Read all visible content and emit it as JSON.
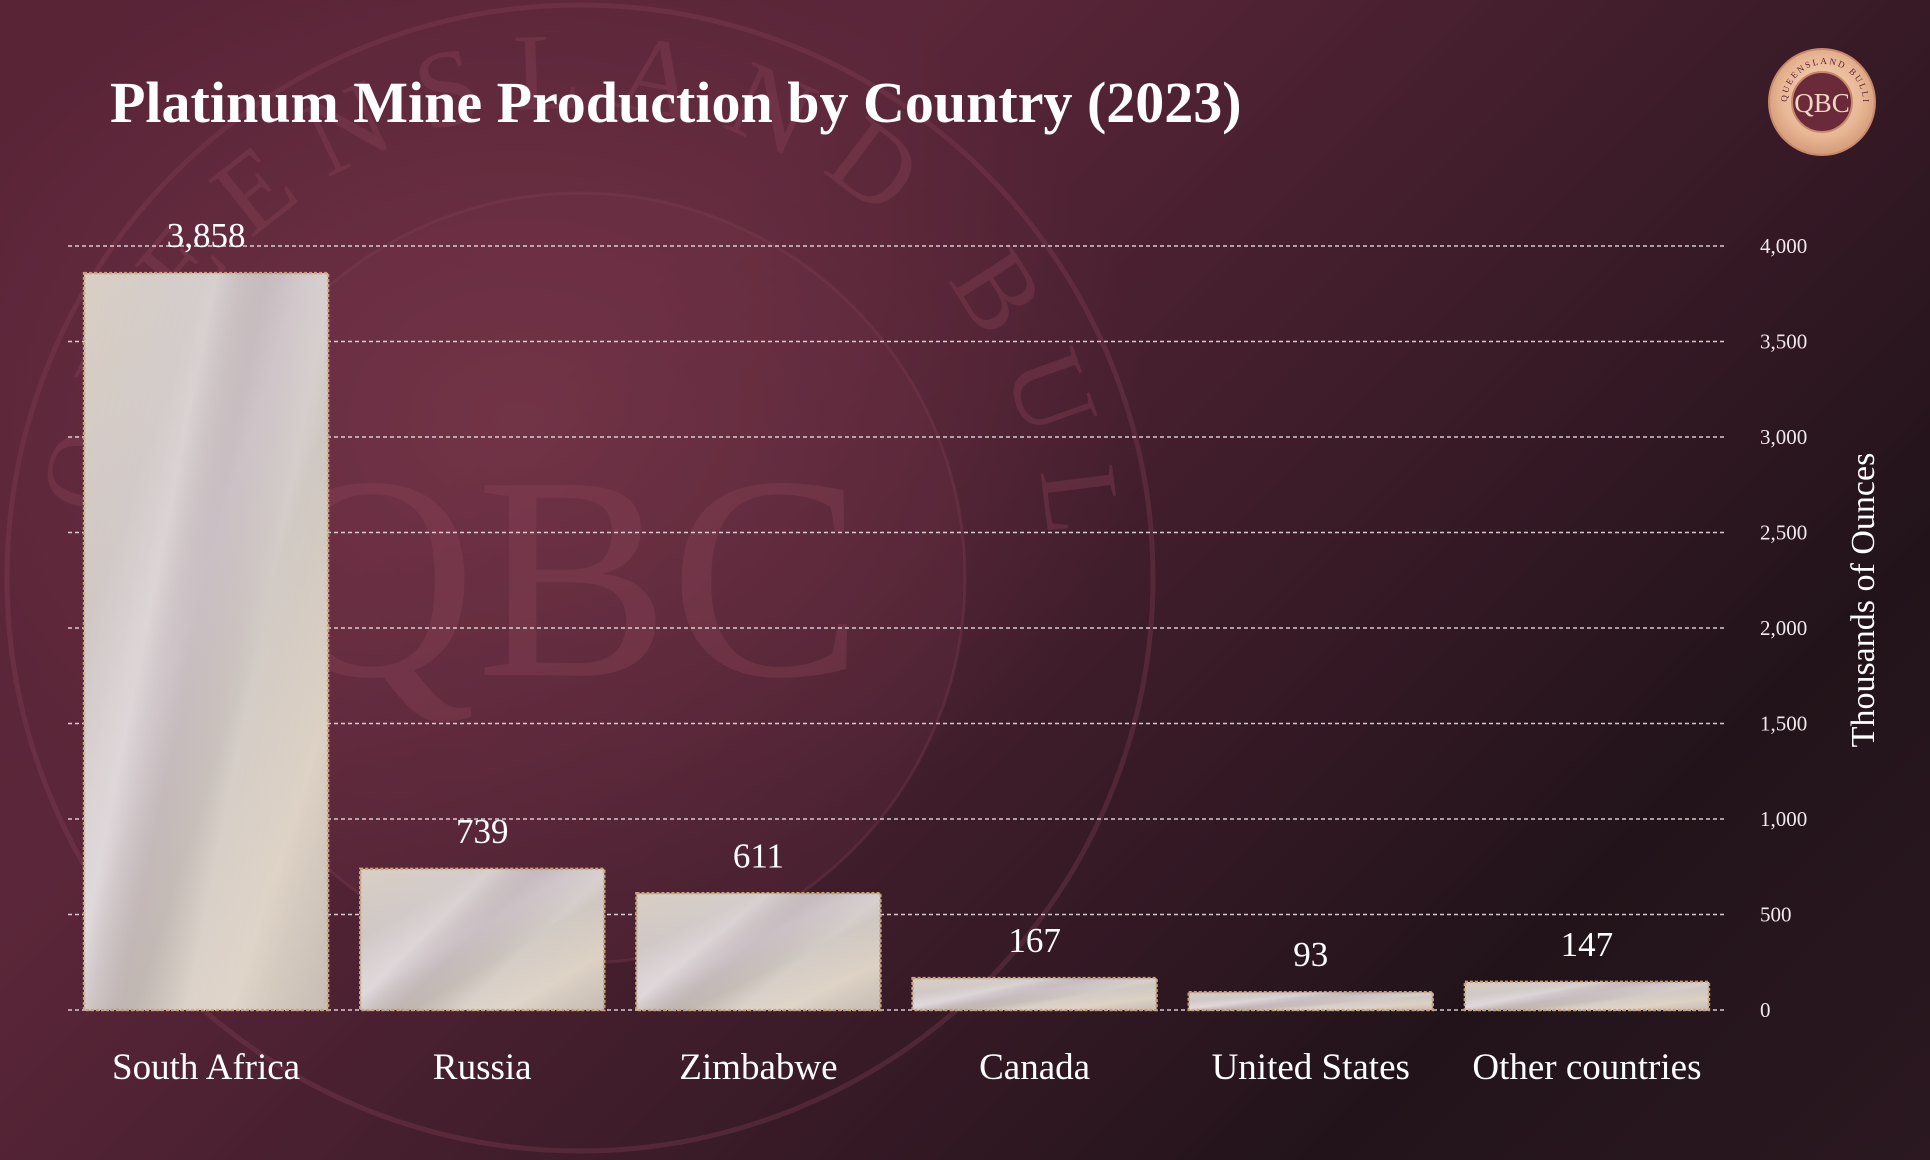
{
  "brand": {
    "logo_main": "QBC",
    "logo_ring": "QUEENSLAND BULLION COMPANY",
    "accent": "#e6b38f",
    "ring_color": "#c9886a"
  },
  "watermark": {
    "main": "QBC",
    "ring": "QUEENSLAND BULLION COMPANY"
  },
  "chart_data": {
    "type": "bar",
    "title": "Platinum Mine Production by Country (2023)",
    "xlabel": "",
    "ylabel": "Thousands of Ounces",
    "categories": [
      "South Africa",
      "Russia",
      "Zimbabwe",
      "Canada",
      "United States",
      "Other countries"
    ],
    "values": [
      3858,
      739,
      611,
      167,
      93,
      147
    ],
    "value_labels": [
      "3,858",
      "739",
      "611",
      "167",
      "93",
      "147"
    ],
    "ylim": [
      0,
      4000
    ],
    "y_ticks": [
      0,
      500,
      1000,
      1500,
      2000,
      2500,
      3000,
      3500,
      4000
    ],
    "y_tick_labels": [
      "0",
      "500",
      "1,000",
      "1,500",
      "2,000",
      "2,500",
      "3,000",
      "3,500",
      "4,000"
    ],
    "y_axis_side": "right",
    "grid": true,
    "legend": "none",
    "bar_color": "#d8cfc8",
    "bar_border_color": "#c9a27a",
    "grid_color": "#e8dde1"
  }
}
